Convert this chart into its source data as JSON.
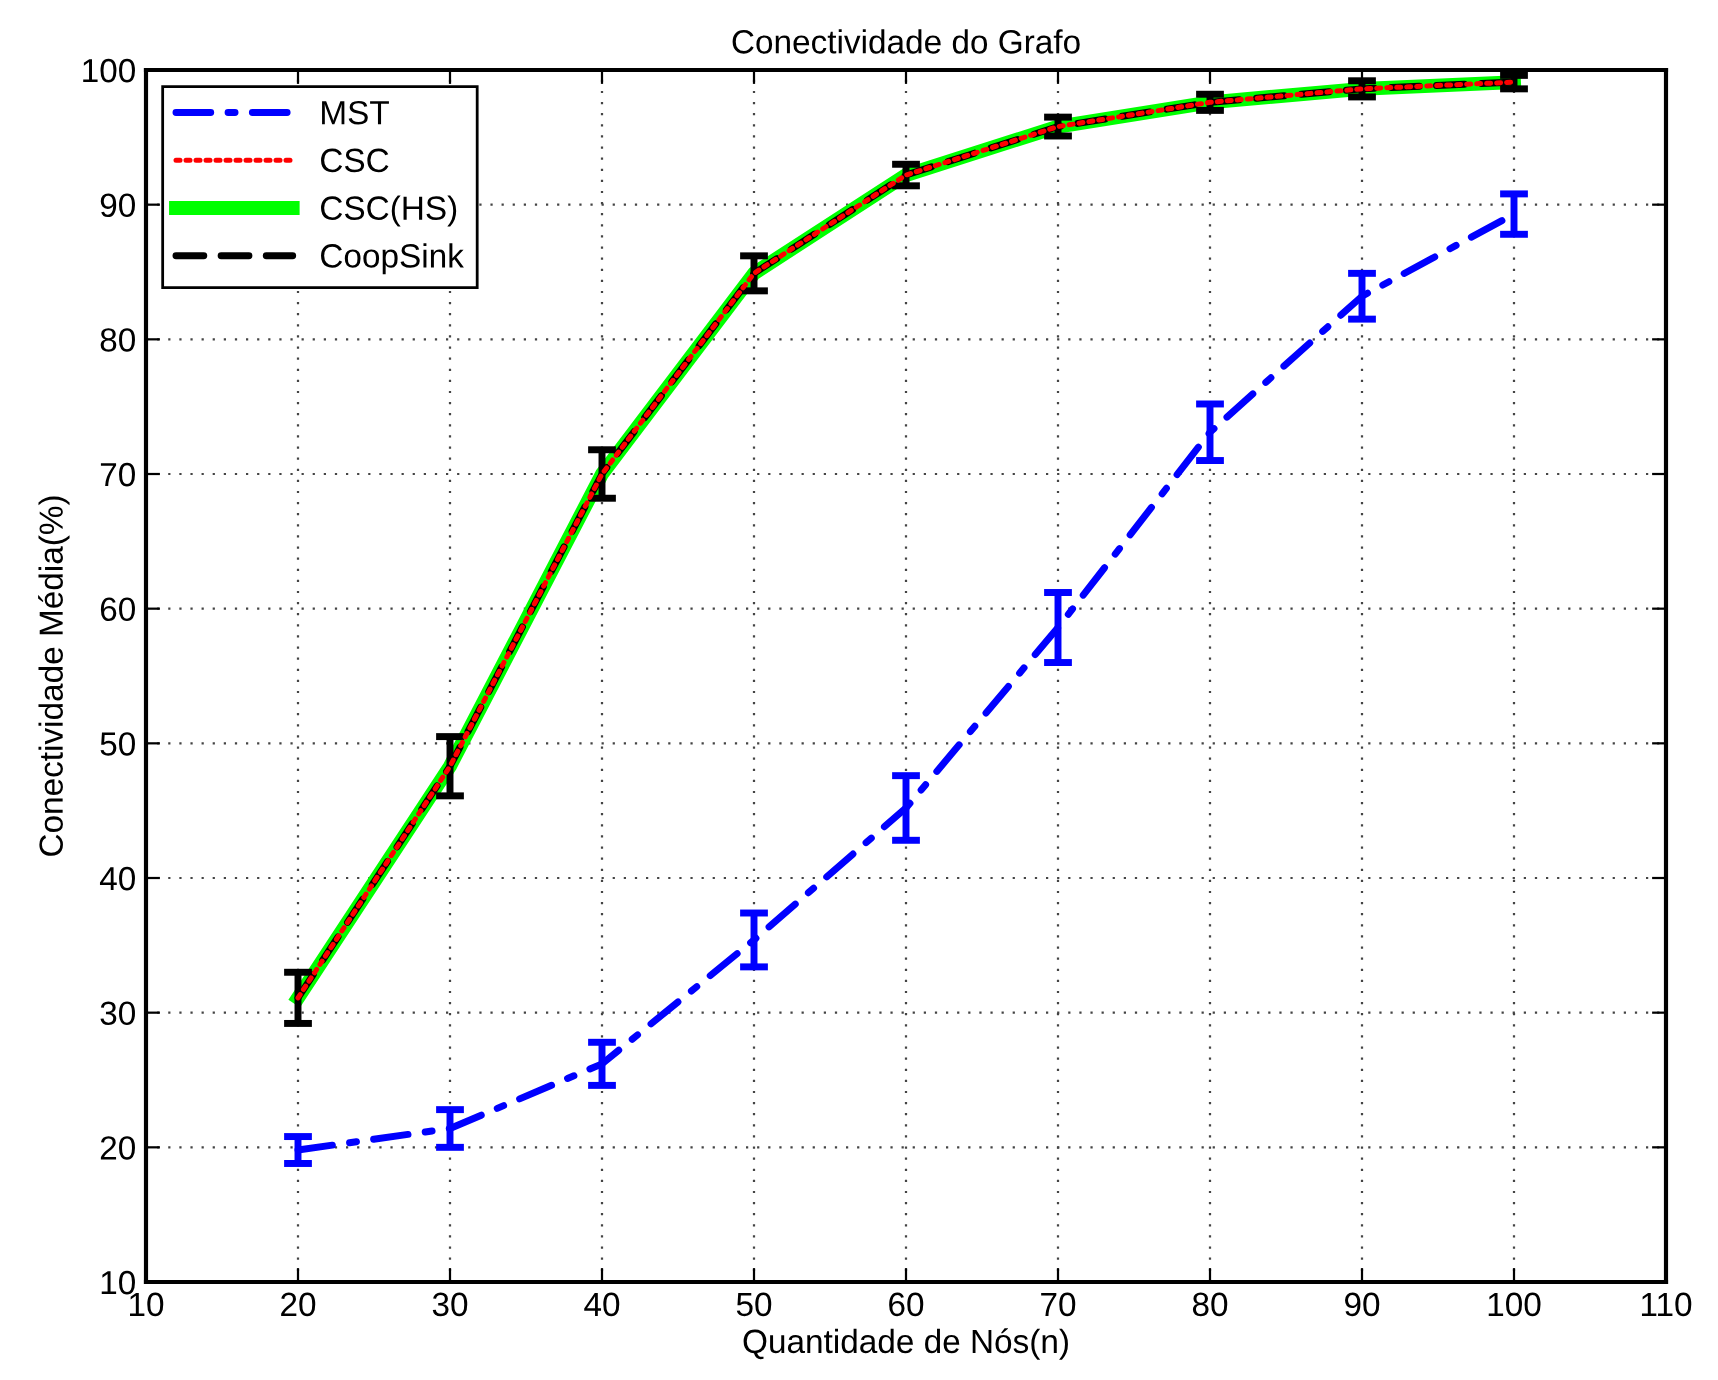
{
  "chart_data": {
    "type": "line",
    "title": "Conectividade do Grafo",
    "xlabel": "Quantidade de Nós(n)",
    "ylabel": "Conectividade Média(%)",
    "x": [
      20,
      30,
      40,
      50,
      60,
      70,
      80,
      90,
      100
    ],
    "xlim": [
      10,
      110
    ],
    "xticks": [
      10,
      20,
      30,
      40,
      50,
      60,
      70,
      80,
      90,
      100,
      110
    ],
    "ylim": [
      10,
      100
    ],
    "yticks": [
      10,
      20,
      30,
      40,
      50,
      60,
      70,
      80,
      90,
      100
    ],
    "grid": true,
    "legend": "top left",
    "marker": "none",
    "series": [
      {
        "name": "MST",
        "color": "#0000ff",
        "line_style": "dashdot",
        "values": [
          19.8,
          21.4,
          26.2,
          35.4,
          45.2,
          58.6,
          73.1,
          83.2,
          89.3
        ],
        "errors": [
          1,
          1.4,
          1.6,
          2,
          2.4,
          2.6,
          2.1,
          1.7,
          1.5
        ]
      },
      {
        "name": "CSC",
        "color": "#ff0000",
        "line_style": "dotted",
        "values": [
          31.1,
          48.3,
          70,
          84.9,
          92.2,
          95.8,
          97.6,
          98.6,
          99.1
        ]
      },
      {
        "name": "CSC(HS)",
        "color": "#00ff00",
        "line_style": "solid",
        "values": [
          31.1,
          48.3,
          70,
          84.9,
          92.2,
          95.8,
          97.6,
          98.6,
          99.1
        ]
      },
      {
        "name": "CoopSink",
        "color": "#000000",
        "line_style": "dashed",
        "values": [
          31.1,
          48.3,
          70,
          84.9,
          92.2,
          95.8,
          97.6,
          98.6,
          99.1
        ],
        "errors": [
          1.9,
          2.2,
          1.8,
          1.3,
          0.8,
          0.7,
          0.6,
          0.6,
          0.5
        ]
      }
    ]
  }
}
